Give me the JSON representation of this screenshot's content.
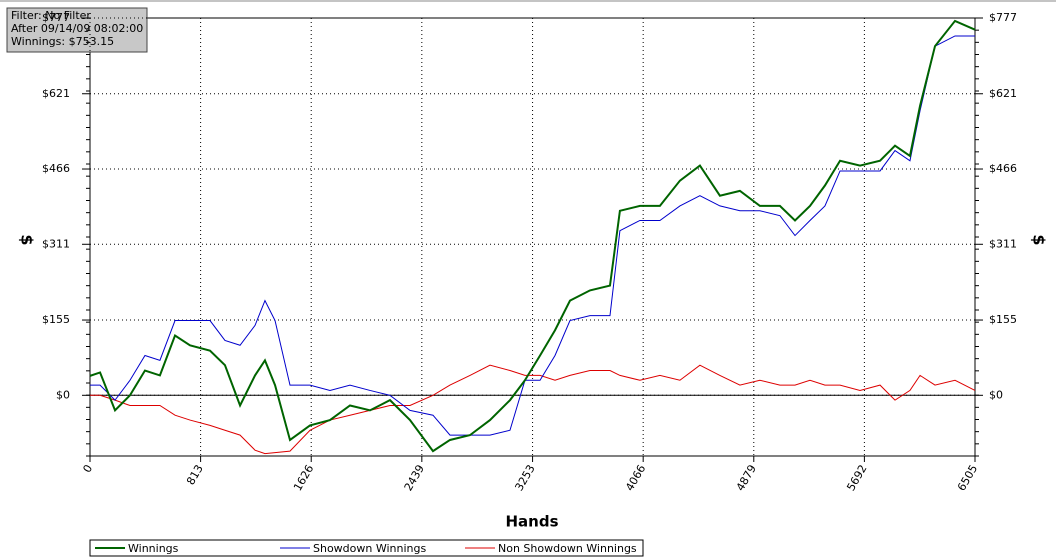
{
  "chart_data": {
    "type": "line",
    "annotations": [
      "Filter: No Filter",
      "After 09/14/09 08:02:00",
      "Winnings: $753.15"
    ],
    "xlabel": "Hands",
    "ylabel": "$",
    "x": [
      0,
      74,
      184,
      294,
      404,
      514,
      625,
      735,
      882,
      992,
      1103,
      1213,
      1286,
      1360,
      1470,
      1617,
      1764,
      1911,
      2058,
      2205,
      2352,
      2521,
      2646,
      2793,
      2940,
      3087,
      3197,
      3308,
      3418,
      3528,
      3675,
      3822,
      3895,
      4042,
      4189,
      4336,
      4483,
      4630,
      4777,
      4924,
      5071,
      5182,
      5292,
      5402,
      5513,
      5660,
      5807,
      5917,
      6027,
      6101,
      6211,
      6358,
      6505
    ],
    "series": [
      {
        "name": "Winnings",
        "color": "#006400",
        "values": [
          40,
          47,
          -31,
          0,
          51,
          41,
          123,
          103,
          92,
          62,
          -21,
          41,
          72,
          21,
          -92,
          -62,
          -51,
          -21,
          -31,
          -10,
          -51,
          -115,
          -92,
          -82,
          -51,
          -10,
          31,
          82,
          134,
          195,
          216,
          226,
          380,
          390,
          390,
          442,
          473,
          411,
          421,
          390,
          390,
          360,
          390,
          432,
          483,
          473,
          483,
          514,
          493,
          596,
          719,
          771,
          753
        ]
      },
      {
        "name": "Showdown Winnings",
        "color": "#0000cc",
        "values": [
          21,
          21,
          -10,
          31,
          82,
          72,
          154,
          154,
          154,
          113,
          103,
          144,
          195,
          154,
          21,
          21,
          10,
          21,
          10,
          0,
          -31,
          -41,
          -82,
          -82,
          -82,
          -72,
          31,
          31,
          82,
          154,
          164,
          164,
          339,
          360,
          360,
          390,
          411,
          390,
          380,
          380,
          370,
          329,
          360,
          390,
          462,
          462,
          462,
          504,
          483,
          586,
          719,
          740,
          740
        ]
      },
      {
        "name": "Non Showdown Winnings",
        "color": "#dd0000",
        "values": [
          0,
          0,
          -10,
          -21,
          -21,
          -21,
          -41,
          -51,
          -62,
          -72,
          -82,
          -113,
          -120,
          -118,
          -115,
          -72,
          -51,
          -41,
          -31,
          -21,
          -21,
          0,
          21,
          41,
          62,
          51,
          41,
          41,
          31,
          41,
          51,
          51,
          41,
          31,
          41,
          31,
          62,
          41,
          21,
          31,
          21,
          21,
          31,
          21,
          21,
          10,
          21,
          -10,
          10,
          41,
          21,
          31,
          10
        ]
      }
    ],
    "xlim": [
      0,
      6505
    ],
    "xticks": [
      0,
      813,
      1626,
      2439,
      3253,
      4066,
      4879,
      5692,
      6505
    ],
    "ylim": [
      -125,
      777
    ],
    "yticks": [
      {
        "value": 0,
        "label": "$0"
      },
      {
        "value": 155,
        "label": "$155"
      },
      {
        "value": 311,
        "label": "$311"
      },
      {
        "value": 466,
        "label": "$466"
      },
      {
        "value": 621,
        "label": "$621"
      },
      {
        "value": 777,
        "label": "$777"
      }
    ],
    "grid": true
  }
}
